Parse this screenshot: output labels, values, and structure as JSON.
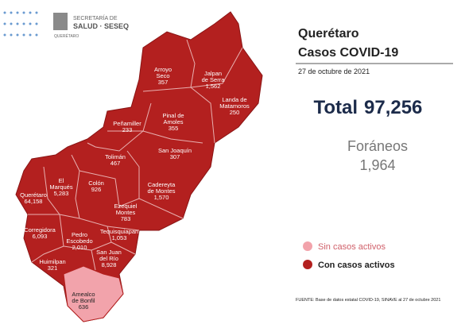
{
  "header": {
    "lines": [
      "SECRETARÍA DE",
      "SALUD · SESEQ",
      "QUERÉTARO"
    ]
  },
  "title": "Querétaro",
  "subtitle": "Casos COVID-19",
  "date": "27 de octubre de 2021",
  "total": {
    "label": "Total",
    "value": "97,256"
  },
  "foreign": {
    "label": "Foráneos",
    "value": "1,964"
  },
  "legend": [
    "Sin casos activos",
    "Con casos activos"
  ],
  "source": "FUENTE:  Base de datos estatal COVID-19, SINAVE  al 27 de octubre 2021",
  "municipalities": [
    {
      "name": [
        "Arroyo",
        "Seco"
      ],
      "value": "357"
    },
    {
      "name": [
        "Jalpan",
        "de Serra"
      ],
      "value": "1,562"
    },
    {
      "name": [
        "Landa de",
        "Matamoros"
      ],
      "value": "250"
    },
    {
      "name": [
        "Pinal de",
        "Amoles"
      ],
      "value": "355"
    },
    {
      "name": [
        "Peñamiller"
      ],
      "value": "233"
    },
    {
      "name": [
        "San Joaquín"
      ],
      "value": "307"
    },
    {
      "name": [
        "Tolimán"
      ],
      "value": "467"
    },
    {
      "name": [
        "Cadereyta",
        "de Montes"
      ],
      "value": "1,570"
    },
    {
      "name": [
        "El",
        "Marqués"
      ],
      "value": "5,283"
    },
    {
      "name": [
        "Colón"
      ],
      "value": "926"
    },
    {
      "name": [
        "Querétaro"
      ],
      "value": "64,158"
    },
    {
      "name": [
        "Ezequiel",
        "Montes"
      ],
      "value": "783"
    },
    {
      "name": [
        "Tequisquiapan"
      ],
      "value": "1,053"
    },
    {
      "name": [
        "Corregidora"
      ],
      "value": "6,093"
    },
    {
      "name": [
        "Pedro",
        "Escobedo"
      ],
      "value": "2,010"
    },
    {
      "name": [
        "San Juan",
        "del Río"
      ],
      "value": "8,928"
    },
    {
      "name": [
        "Huimilpan"
      ],
      "value": "321"
    },
    {
      "name": [
        "Amealco",
        "de Bonfil"
      ],
      "value": "636"
    }
  ]
}
